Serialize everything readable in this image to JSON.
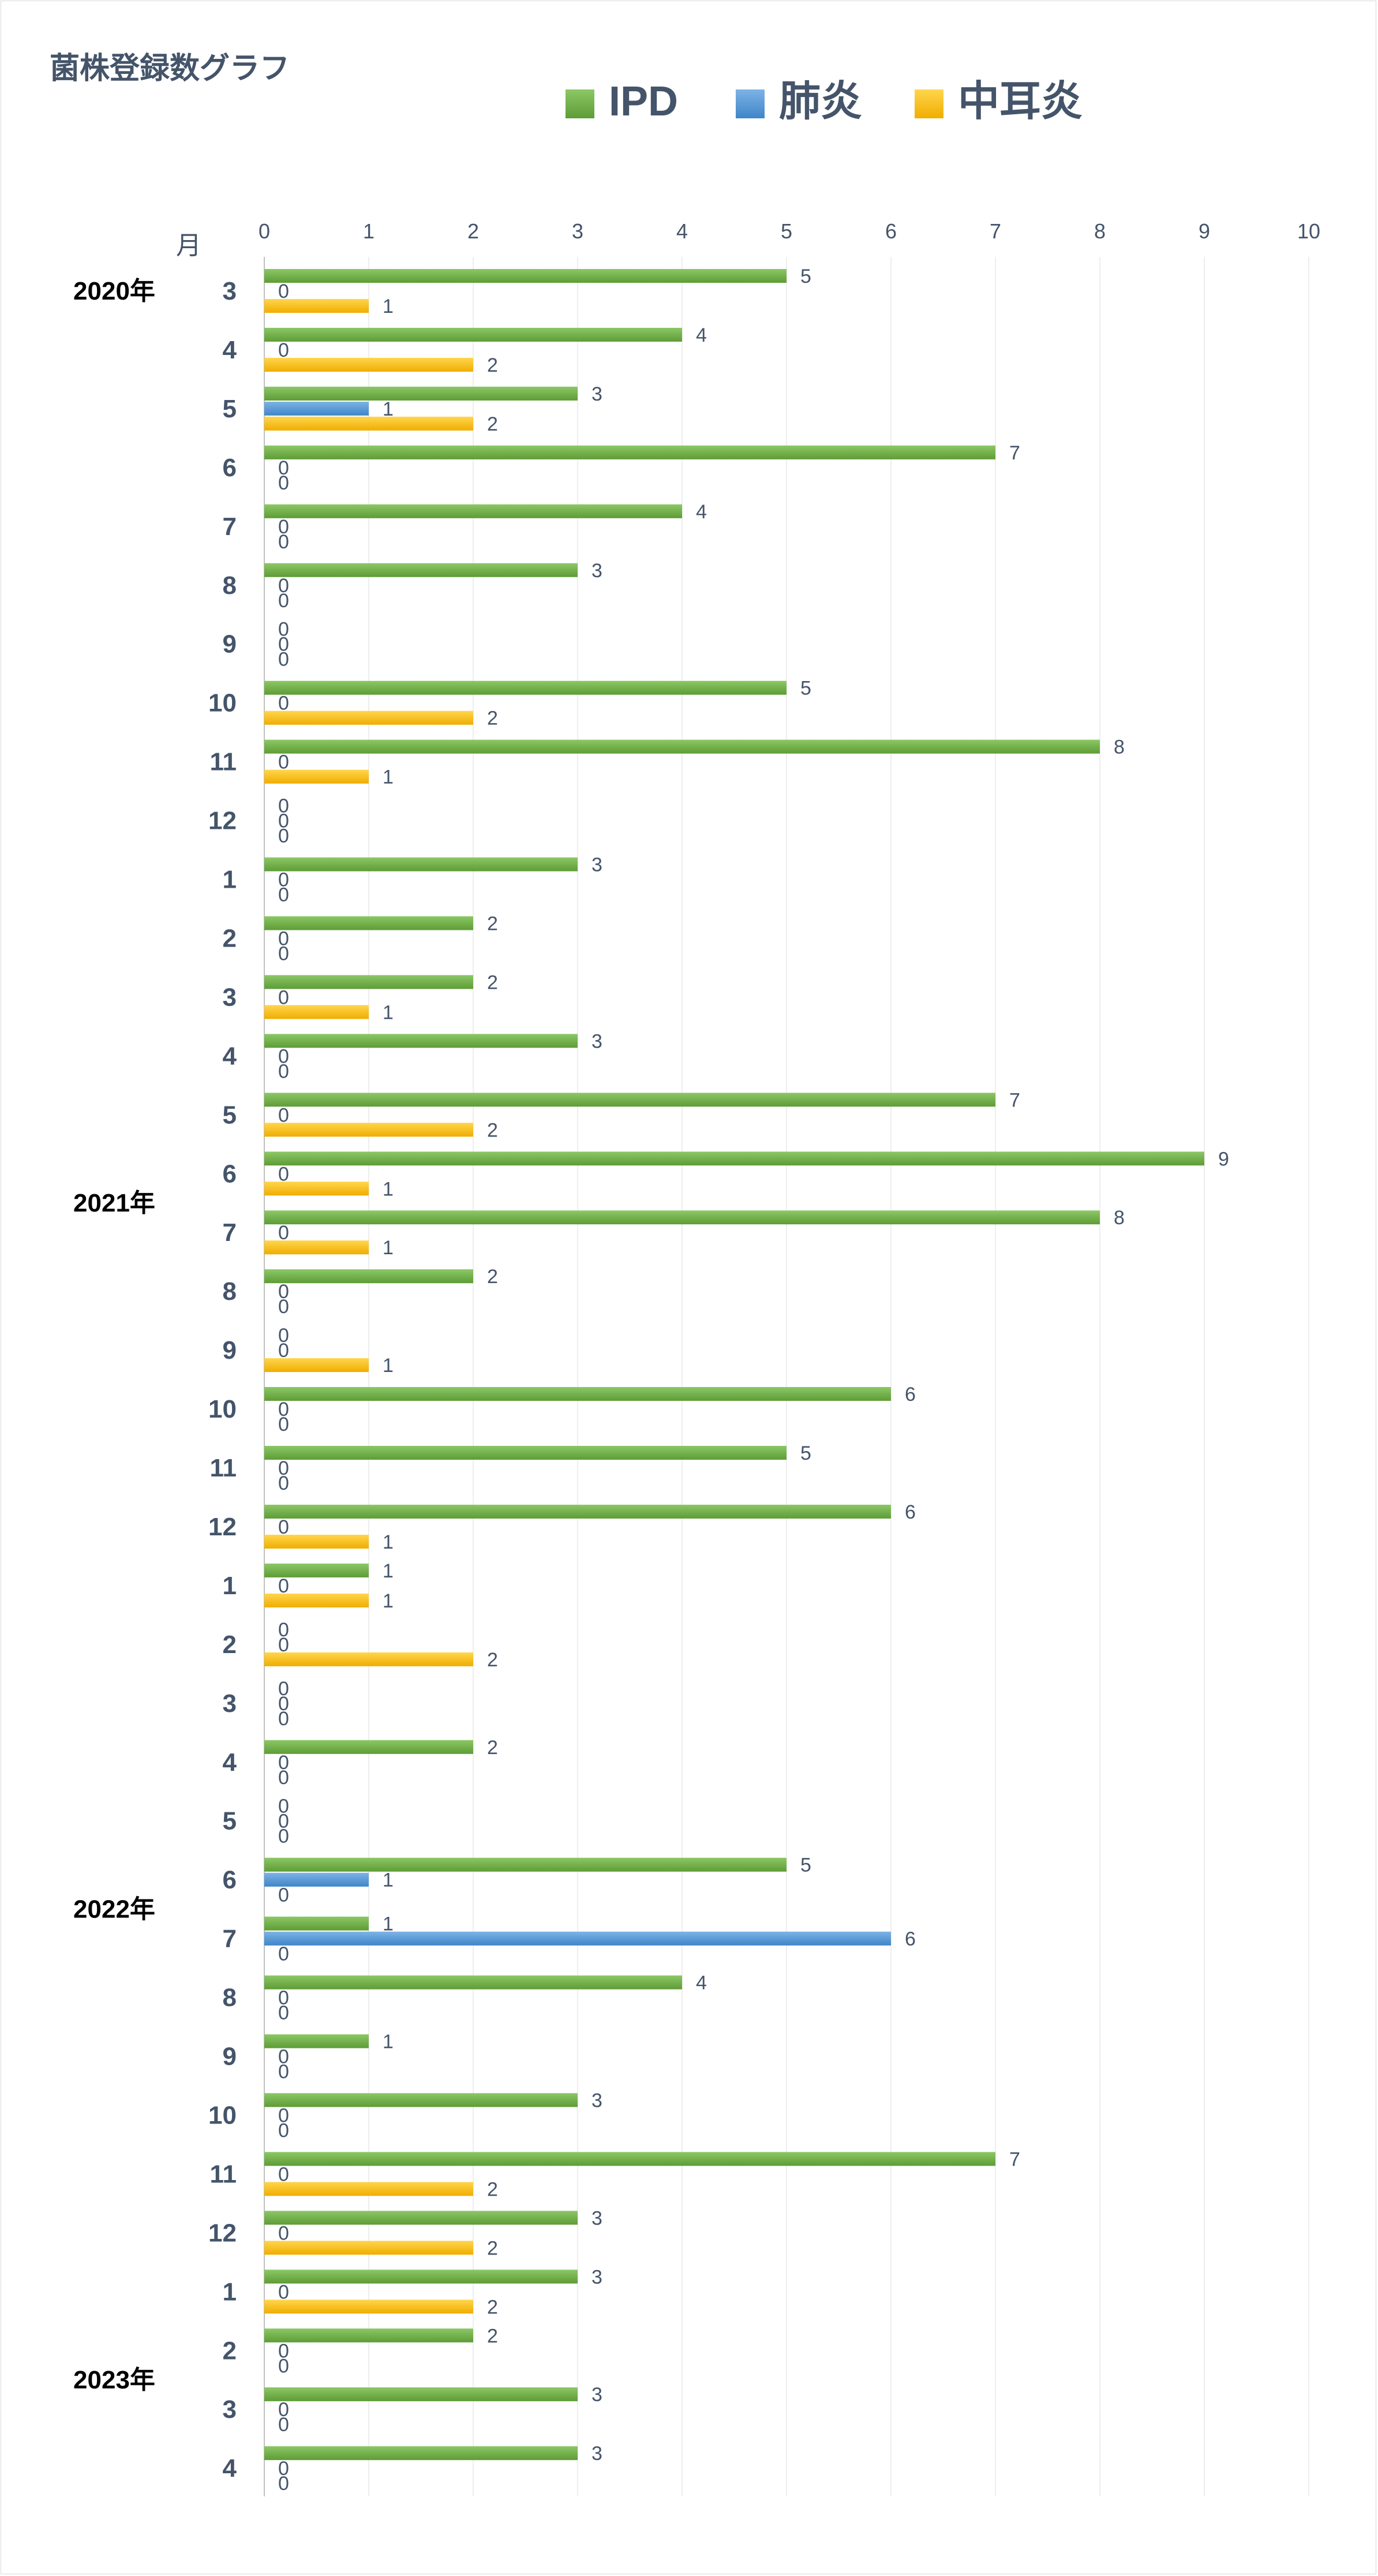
{
  "chart_data": {
    "type": "bar",
    "orientation": "horizontal",
    "title": "菌株登録数グラフ",
    "unit_label": "月",
    "xlim": [
      0,
      10
    ],
    "x_ticks": [
      "0",
      "1",
      "2",
      "3",
      "4",
      "5",
      "6",
      "7",
      "8",
      "9",
      "10"
    ],
    "grid": true,
    "legend_position": "top",
    "categories": [
      "3",
      "4",
      "5",
      "6",
      "7",
      "8",
      "9",
      "10",
      "11",
      "12",
      "1",
      "2",
      "3",
      "4",
      "5",
      "6",
      "7",
      "8",
      "9",
      "10",
      "11",
      "12",
      "1",
      "2",
      "3",
      "4",
      "5",
      "6",
      "7",
      "8",
      "9",
      "10",
      "11",
      "12",
      "1",
      "2",
      "3",
      "4"
    ],
    "year_groups": [
      {
        "label": "2020年",
        "start": 0,
        "end": 9
      },
      {
        "label": "2021年",
        "start": 10,
        "end": 21
      },
      {
        "label": "2022年",
        "start": 22,
        "end": 33
      },
      {
        "label": "2023年",
        "start": 34,
        "end": 37
      }
    ],
    "series": [
      {
        "name": "IPD",
        "color": "#70ad47",
        "values": [
          5,
          4,
          3,
          7,
          4,
          3,
          0,
          5,
          8,
          0,
          3,
          2,
          2,
          3,
          7,
          9,
          8,
          2,
          0,
          6,
          5,
          6,
          1,
          0,
          0,
          2,
          0,
          5,
          1,
          4,
          1,
          3,
          7,
          3,
          3,
          2,
          3,
          3
        ]
      },
      {
        "name": "肺炎",
        "color": "#5b9bd5",
        "values": [
          0,
          0,
          1,
          0,
          0,
          0,
          0,
          0,
          0,
          0,
          0,
          0,
          0,
          0,
          0,
          0,
          0,
          0,
          0,
          0,
          0,
          0,
          0,
          0,
          0,
          0,
          0,
          1,
          6,
          0,
          0,
          0,
          0,
          0,
          0,
          0,
          0,
          0
        ]
      },
      {
        "name": "中耳炎",
        "color": "#ffc000",
        "values": [
          1,
          2,
          2,
          0,
          0,
          0,
          0,
          2,
          1,
          0,
          0,
          0,
          1,
          0,
          2,
          1,
          1,
          0,
          1,
          0,
          0,
          1,
          1,
          2,
          0,
          0,
          0,
          0,
          0,
          0,
          0,
          0,
          2,
          2,
          2,
          0,
          0,
          0
        ]
      }
    ]
  }
}
